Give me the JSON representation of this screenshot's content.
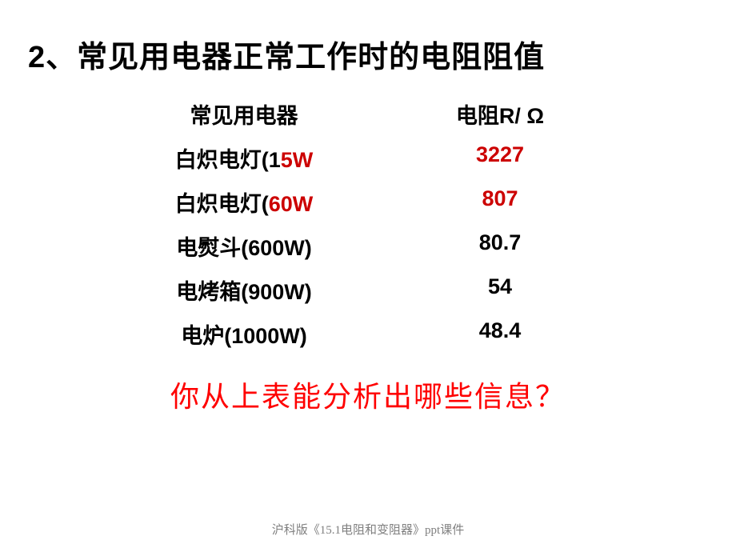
{
  "title": "2、常见用电器正常工作时的电阻阻值",
  "header": {
    "col1": "常见用电器",
    "col2": "电阻R/ Ω"
  },
  "rows": [
    {
      "label_prefix": "白炽电灯(1",
      "label_highlight": "5W",
      "label_suffix": "",
      "value": "3227",
      "value_color": "#cc0000",
      "value_bold": true
    },
    {
      "label_prefix": "白炽电灯(",
      "label_highlight": "60W",
      "label_suffix": "",
      "value": "807",
      "value_color": "#cc0000",
      "value_bold": true
    },
    {
      "label_prefix": "电熨斗(600W)",
      "label_highlight": "",
      "label_suffix": "",
      "value": "80.7",
      "value_color": "#000000",
      "value_bold": true
    },
    {
      "label_prefix": "电烤箱(900W)",
      "label_highlight": "",
      "label_suffix": "",
      "value": "54",
      "value_color": "#000000",
      "value_bold": true
    },
    {
      "label_prefix": "电炉(1000W)",
      "label_highlight": "",
      "label_suffix": "",
      "value": "48.4",
      "value_color": "#000000",
      "value_bold": true
    }
  ],
  "question": "你从上表能分析出哪些信息？",
  "footer": "沪科版《15.1电阻和变阻器》ppt课件",
  "colors": {
    "title": "#000000",
    "highlight": "#cc0000",
    "question": "#ff0000",
    "footer": "#808080",
    "background": "#ffffff"
  },
  "fontsizes": {
    "title_pt": 38,
    "row_pt": 27,
    "question_pt": 36,
    "footer_pt": 15
  }
}
